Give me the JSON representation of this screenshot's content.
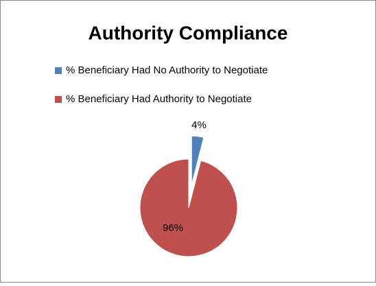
{
  "chart_data": {
    "type": "pie",
    "title": "Authority Compliance",
    "categories": [
      "% Beneficiary Had No Authority to Negotiate",
      "% Beneficiary Had Authority to Negotiate"
    ],
    "values": [
      4,
      96
    ],
    "value_labels": [
      "4%",
      "96%"
    ],
    "colors": [
      "#4f81bd",
      "#c0504d"
    ],
    "legend": "top"
  }
}
